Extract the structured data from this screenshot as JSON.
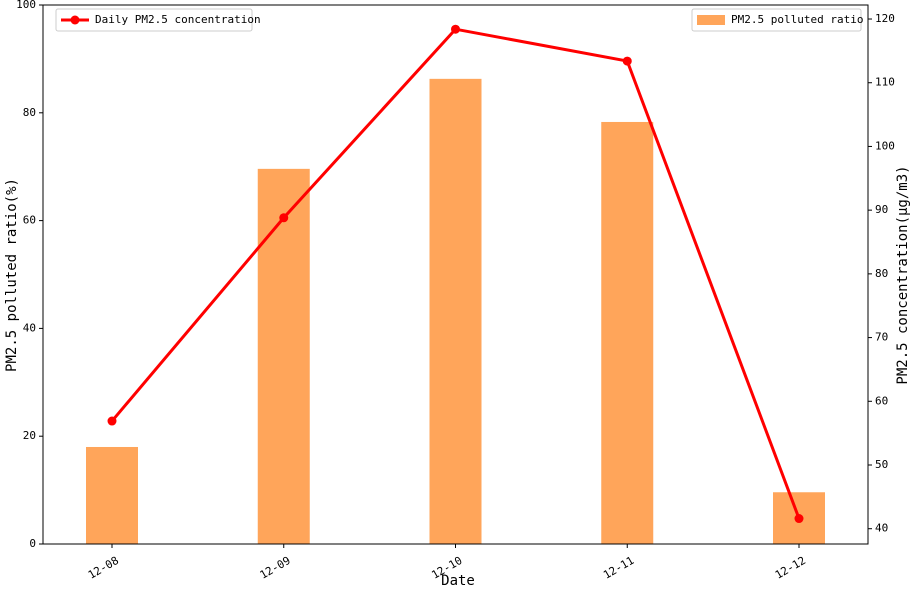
{
  "chart_data": {
    "type": "bar",
    "xlabel": "Date",
    "ylabel": "PM2.5 polluted ratio(%)",
    "y2label": "PM2.5 concentration(μg/m3)",
    "categories": [
      "12-08",
      "12-09",
      "12-10",
      "12-11",
      "12-12"
    ],
    "series": [
      {
        "name": "PM2.5 polluted ratio",
        "type": "bar",
        "color": "#ffa55a",
        "values": [
          18,
          69.6,
          86.3,
          78.3,
          9.6
        ],
        "legend": "upper right"
      },
      {
        "name": "Daily PM2.5 concentration",
        "type": "line",
        "axis": "y2",
        "color": "#ff0000",
        "values": [
          56.9,
          88.8,
          118.4,
          113.4,
          41.6
        ],
        "legend": "upper left"
      }
    ],
    "ylim": [
      0,
      100
    ],
    "yticks": [
      0,
      20,
      40,
      60,
      80,
      100
    ],
    "y2lim": [
      37.6,
      122.2
    ],
    "y2ticks": [
      40,
      50,
      60,
      70,
      80,
      90,
      100,
      110,
      120
    ],
    "grid": false
  }
}
